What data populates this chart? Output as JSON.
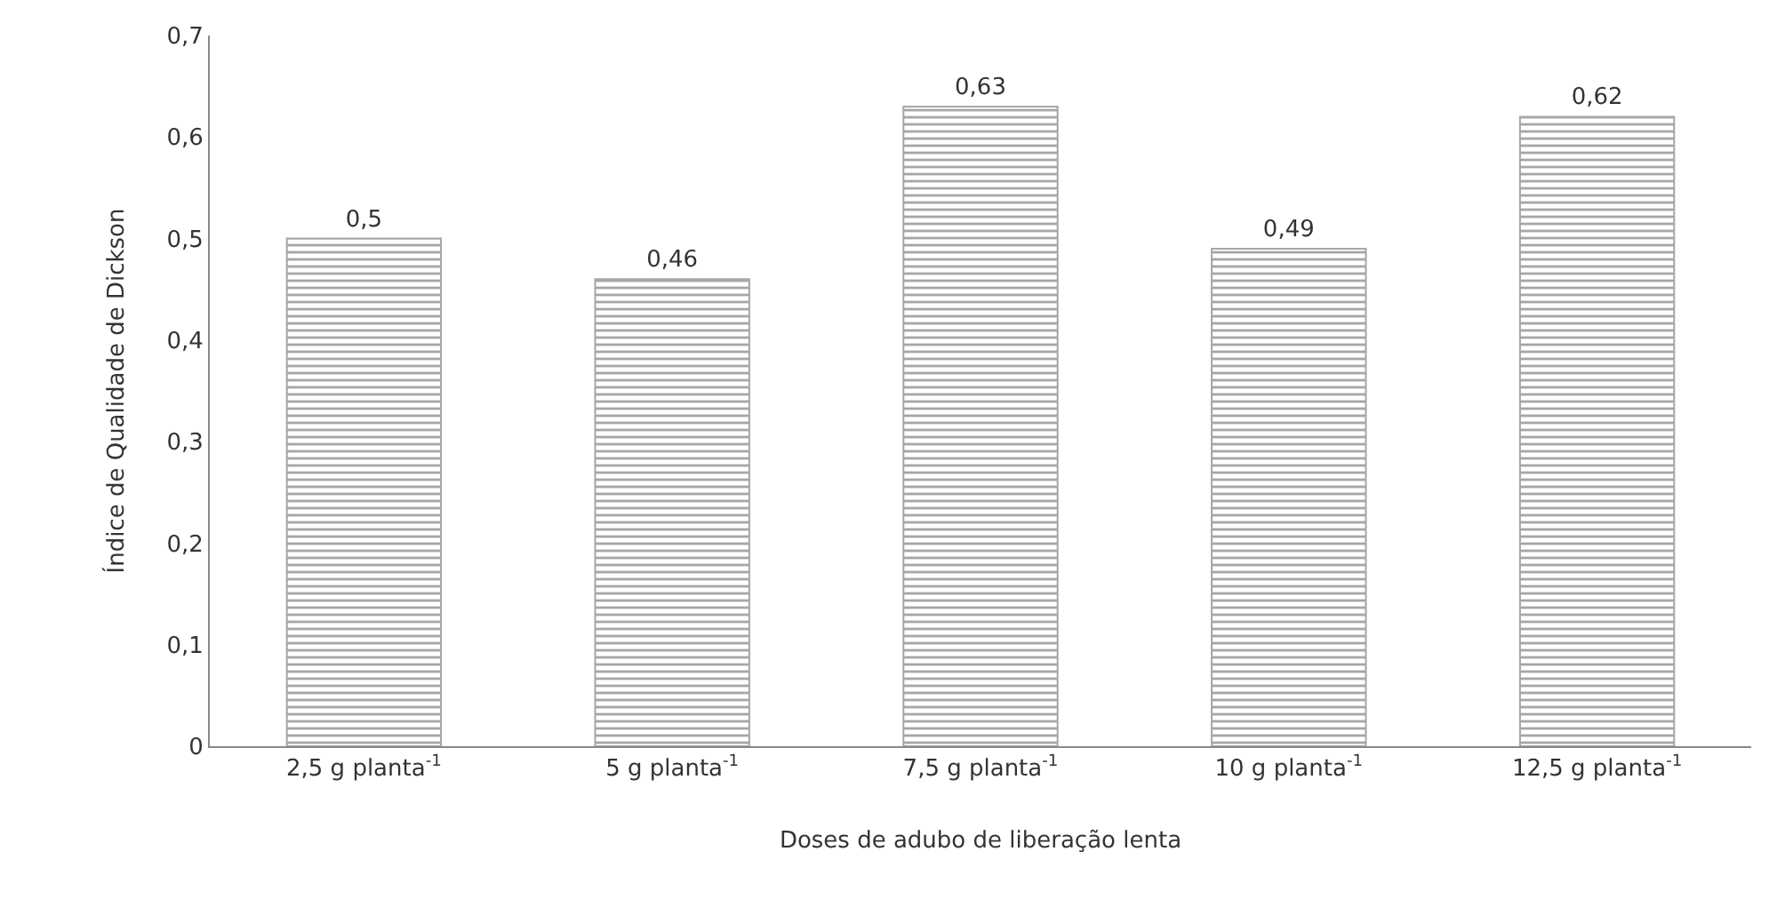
{
  "chart_data": {
    "type": "bar",
    "xlabel": "Doses de adubo de liberação lenta",
    "ylabel": "Índice de Qualidade de Dickson",
    "categories": [
      "2,5 g planta$^{-1}$",
      "5 g planta$^{-1}$",
      "7,5 g planta$^{-1}$",
      "10 g planta$^{-1}$",
      "12,5 g planta$^{-1}$"
    ],
    "values": [
      0.5,
      0.46,
      0.63,
      0.49,
      0.62
    ],
    "value_labels": [
      "0,5",
      "0,46",
      "0,63",
      "0,49",
      "0,62"
    ],
    "color": "#a6a6a6",
    "ylim": [
      0,
      0.7
    ],
    "yticks": [
      0,
      {
        "value": 0.1,
        "label": "0,1"
      },
      {
        "value": 0.2,
        "label": "0,2"
      },
      {
        "value": 0.3,
        "label": "0,3"
      },
      {
        "value": 0.4,
        "label": "0,4"
      },
      {
        "value": 0.5,
        "label": "0,5"
      },
      {
        "value": 0.6,
        "label": "0,6"
      },
      {
        "value": 0.7,
        "label": "0,7"
      }
    ],
    "grid": false
  }
}
